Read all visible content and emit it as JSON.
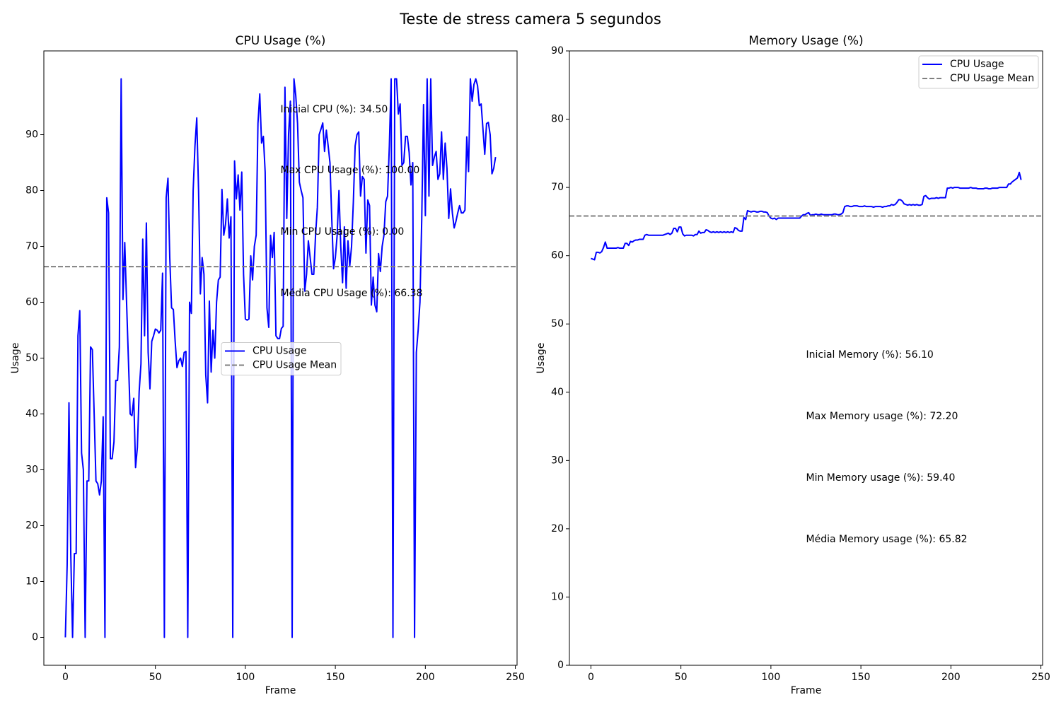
{
  "title": "Teste de stress camera 5 segundos",
  "chart_data": [
    {
      "type": "line",
      "title": "CPU Usage (%)",
      "xlabel": "Frame",
      "ylabel": "Usage",
      "xlim": [
        -11.95,
        250.95
      ],
      "ylim": [
        -5,
        105
      ],
      "xticks": [
        0,
        50,
        100,
        150,
        200,
        250
      ],
      "yticks": [
        0,
        10,
        20,
        30,
        40,
        50,
        60,
        70,
        80,
        90
      ],
      "legend": "center",
      "x": [
        0,
        1,
        2,
        3,
        4,
        5,
        6,
        7,
        8,
        9,
        10,
        11,
        12,
        13,
        14,
        15,
        16,
        17,
        18,
        19,
        20,
        21,
        22,
        23,
        24,
        25,
        26,
        27,
        28,
        29,
        30,
        31,
        32,
        33,
        34,
        35,
        36,
        37,
        38,
        39,
        40,
        41,
        42,
        43,
        44,
        45,
        46,
        47,
        48,
        49,
        50,
        51,
        52,
        53,
        54,
        55,
        56,
        57,
        58,
        59,
        60,
        61,
        62,
        63,
        64,
        65,
        66,
        67,
        68,
        69,
        70,
        71,
        72,
        73,
        74,
        75,
        76,
        77,
        78,
        79,
        80,
        81,
        82,
        83,
        84,
        85,
        86,
        87,
        88,
        89,
        90,
        91,
        92,
        93,
        94,
        95,
        96,
        97,
        98,
        99,
        100,
        101,
        102,
        103,
        104,
        105,
        106,
        107,
        108,
        109,
        110,
        111,
        112,
        113,
        114,
        115,
        116,
        117,
        118,
        119,
        120,
        121,
        122,
        123,
        124,
        125,
        126,
        127,
        128,
        129,
        130,
        131,
        132,
        133,
        134,
        135,
        136,
        137,
        138,
        139,
        140,
        141,
        142,
        143,
        144,
        145,
        146,
        147,
        148,
        149,
        150,
        151,
        152,
        153,
        154,
        155,
        156,
        157,
        158,
        159,
        160,
        161,
        162,
        163,
        164,
        165,
        166,
        167,
        168,
        169,
        170,
        171,
        172,
        173,
        174,
        175,
        176,
        177,
        178,
        179,
        180,
        181,
        182,
        183,
        184,
        185,
        186,
        187,
        188,
        189,
        190,
        191,
        192,
        193,
        194,
        195,
        196,
        197,
        198,
        199,
        200,
        201,
        202,
        203,
        204,
        205,
        206,
        207,
        208,
        209,
        210,
        211,
        212,
        213,
        214,
        215,
        216,
        217,
        218,
        219,
        220,
        221,
        222,
        223,
        224,
        225,
        226,
        227,
        228,
        229,
        230,
        231,
        232,
        233,
        234,
        235,
        236,
        237,
        238,
        239
      ],
      "series": [
        {
          "name": "CPU Usage",
          "color": "#0000ff",
          "values": [
            0,
            13,
            42,
            15,
            0,
            15,
            15,
            54,
            58.5,
            33,
            30,
            0,
            28,
            28,
            52,
            51.5,
            40,
            28,
            27.5,
            25.5,
            28,
            39.5,
            0,
            78.7,
            76,
            32,
            32,
            35,
            46,
            46,
            52,
            100,
            60.5,
            70.7,
            60,
            50,
            40,
            39.7,
            42.8,
            30.4,
            34,
            44,
            49,
            71.3,
            54,
            74.2,
            51,
            44.5,
            53,
            54,
            55.2,
            55,
            54.5,
            55,
            65.2,
            0,
            78.7,
            82.2,
            68,
            59,
            58.7,
            53,
            48.3,
            49.5,
            50,
            48.5,
            51,
            51.2,
            0,
            60,
            58,
            80,
            88,
            93,
            80,
            61.5,
            68,
            65,
            47,
            42,
            60.2,
            47.5,
            55,
            50,
            60,
            64,
            64.5,
            80.2,
            72,
            74,
            78.5,
            71.5,
            75.3,
            0,
            85.3,
            78.5,
            82.8,
            76.5,
            83.3,
            65,
            57,
            56.8,
            57,
            68.3,
            64,
            70,
            72,
            92,
            97.3,
            88.5,
            89.7,
            83.3,
            59,
            55.5,
            72,
            68,
            72.5,
            54,
            53.5,
            53.5,
            55.3,
            55.7,
            98.5,
            75,
            90,
            96,
            0,
            100,
            97,
            92,
            81.5,
            80,
            78.7,
            62,
            65,
            71,
            68,
            65,
            65,
            72,
            77,
            90,
            91,
            92.1,
            87,
            90.8,
            88,
            85,
            75,
            66,
            68,
            72,
            80,
            70,
            63.5,
            73.5,
            62.5,
            71,
            66.5,
            70,
            78,
            88,
            90,
            90.5,
            79,
            82.5,
            82,
            68.8,
            78.3,
            77.3,
            59.5,
            64.5,
            59.5,
            58.3,
            68.7,
            65.5,
            70,
            72,
            78,
            79,
            88,
            100,
            0,
            100,
            100,
            93.7,
            95.5,
            84.5,
            85,
            89.7,
            89.7,
            86.8,
            81,
            85,
            0,
            51,
            55,
            60,
            75,
            95.4,
            75.5,
            100,
            79,
            100,
            84.5,
            86,
            87,
            82,
            83,
            90.5,
            82,
            88.5,
            84,
            75,
            80.3,
            76,
            73.3,
            74.5,
            76,
            77.3,
            76,
            76,
            76.5,
            89.6,
            83.4,
            100,
            96,
            99,
            100,
            98.8,
            95.2,
            95.5,
            91,
            86.5,
            92,
            92.2,
            90,
            83,
            84,
            86
          ]
        },
        {
          "name": "CPU Usage Mean",
          "color": "#808080",
          "dashed": true,
          "value": 66.38
        }
      ],
      "annotations": [
        "Inicial CPU (%): 34.50",
        "Max CPU Usage (%): 100.00",
        "Min CPU Usage (%): 0.00",
        "Média CPU Usage (%): 66.38"
      ]
    },
    {
      "type": "line",
      "title": "Memory Usage (%)",
      "xlabel": "Frame",
      "ylabel": "Usage",
      "xlim": [
        -11.95,
        250.95
      ],
      "ylim": [
        0,
        90
      ],
      "xticks": [
        0,
        50,
        100,
        150,
        200,
        250
      ],
      "yticks": [
        0,
        10,
        20,
        30,
        40,
        50,
        60,
        70,
        80,
        90
      ],
      "legend": "upper right",
      "x": [
        0,
        1,
        2,
        3,
        4,
        5,
        6,
        7,
        8,
        9,
        10,
        11,
        12,
        13,
        14,
        15,
        16,
        17,
        18,
        19,
        20,
        21,
        22,
        23,
        24,
        25,
        26,
        27,
        28,
        29,
        30,
        31,
        32,
        33,
        34,
        35,
        36,
        37,
        38,
        39,
        40,
        41,
        42,
        43,
        44,
        45,
        46,
        47,
        48,
        49,
        50,
        51,
        52,
        53,
        54,
        55,
        56,
        57,
        58,
        59,
        60,
        61,
        62,
        63,
        64,
        65,
        66,
        67,
        68,
        69,
        70,
        71,
        72,
        73,
        74,
        75,
        76,
        77,
        78,
        79,
        80,
        81,
        82,
        83,
        84,
        85,
        86,
        87,
        88,
        89,
        90,
        91,
        92,
        93,
        94,
        95,
        96,
        97,
        98,
        99,
        100,
        101,
        102,
        103,
        104,
        105,
        106,
        107,
        108,
        109,
        110,
        111,
        112,
        113,
        114,
        115,
        116,
        117,
        118,
        119,
        120,
        121,
        122,
        123,
        124,
        125,
        126,
        127,
        128,
        129,
        130,
        131,
        132,
        133,
        134,
        135,
        136,
        137,
        138,
        139,
        140,
        141,
        142,
        143,
        144,
        145,
        146,
        147,
        148,
        149,
        150,
        151,
        152,
        153,
        154,
        155,
        156,
        157,
        158,
        159,
        160,
        161,
        162,
        163,
        164,
        165,
        166,
        167,
        168,
        169,
        170,
        171,
        172,
        173,
        174,
        175,
        176,
        177,
        178,
        179,
        180,
        181,
        182,
        183,
        184,
        185,
        186,
        187,
        188,
        189,
        190,
        191,
        192,
        193,
        194,
        195,
        196,
        197,
        198,
        199,
        200,
        201,
        202,
        203,
        204,
        205,
        206,
        207,
        208,
        209,
        210,
        211,
        212,
        213,
        214,
        215,
        216,
        217,
        218,
        219,
        220,
        221,
        222,
        223,
        224,
        225,
        226,
        227,
        228,
        229,
        230,
        231,
        232,
        233,
        234,
        235,
        236,
        237,
        238,
        239
      ],
      "series": [
        {
          "name": "CPU Usage",
          "color": "#0000ff",
          "values": [
            59.6,
            59.5,
            59.4,
            60.5,
            60.5,
            60.4,
            60.6,
            61.2,
            62,
            61.1,
            61.1,
            61.1,
            61.1,
            61.1,
            61.1,
            61.2,
            61.1,
            61.1,
            61.1,
            61.8,
            61.8,
            61.5,
            62.1,
            62,
            62.2,
            62.3,
            62.3,
            62.4,
            62.4,
            62.4,
            63,
            63.1,
            63,
            63,
            63,
            63,
            63,
            63,
            63,
            63,
            63,
            63.1,
            63.2,
            63.3,
            63.1,
            63.3,
            64,
            64,
            63.5,
            64.2,
            64.2,
            63.2,
            62.9,
            63,
            63,
            63,
            63,
            62.9,
            63.1,
            63.1,
            63.6,
            63.3,
            63.4,
            63.4,
            63.8,
            63.7,
            63.5,
            63.4,
            63.5,
            63.4,
            63.5,
            63.4,
            63.5,
            63.4,
            63.5,
            63.4,
            63.5,
            63.4,
            63.5,
            63.4,
            64.1,
            64,
            63.7,
            63.6,
            63.6,
            65.6,
            65.3,
            66.6,
            66.5,
            66.4,
            66.5,
            66.5,
            66.4,
            66.4,
            66.5,
            66.5,
            66.4,
            66.4,
            66.3,
            65.8,
            65.5,
            65.4,
            65.5,
            65.3,
            65.5,
            65.5,
            65.5,
            65.5,
            65.5,
            65.5,
            65.5,
            65.5,
            65.5,
            65.5,
            65.5,
            65.5,
            65.5,
            65.8,
            66,
            66,
            66.2,
            66.3,
            65.9,
            66,
            66,
            66.1,
            66,
            66,
            66.1,
            66,
            66,
            66,
            66,
            66,
            66,
            66.1,
            66.1,
            66,
            66,
            66.1,
            66.3,
            67.2,
            67.3,
            67.3,
            67.2,
            67.2,
            67.3,
            67.3,
            67.3,
            67.2,
            67.2,
            67.2,
            67.3,
            67.2,
            67.2,
            67.2,
            67.2,
            67.1,
            67.2,
            67.2,
            67.2,
            67.2,
            67.1,
            67.2,
            67.2,
            67.3,
            67.3,
            67.5,
            67.4,
            67.5,
            67.8,
            68.2,
            68.2,
            68,
            67.6,
            67.5,
            67.4,
            67.5,
            67.4,
            67.5,
            67.4,
            67.5,
            67.4,
            67.4,
            67.5,
            68.7,
            68.8,
            68.5,
            68.3,
            68.4,
            68.4,
            68.4,
            68.5,
            68.4,
            68.5,
            68.5,
            68.5,
            68.5,
            69.9,
            69.9,
            70,
            69.9,
            70,
            70,
            70,
            69.9,
            69.9,
            69.9,
            69.9,
            69.9,
            69.9,
            70,
            69.9,
            69.9,
            69.9,
            69.8,
            69.8,
            69.8,
            69.8,
            69.9,
            69.9,
            69.8,
            69.8,
            69.9,
            69.9,
            69.9,
            69.9,
            70,
            70,
            70,
            70,
            70,
            70.5,
            70.5,
            70.8,
            71,
            71.2,
            71.4,
            72.2,
            71.1
          ]
        },
        {
          "name": "CPU Usage Mean",
          "color": "#808080",
          "dashed": true,
          "value": 65.82
        }
      ],
      "annotations": [
        "Inicial Memory (%): 56.10",
        "Max Memory usage (%): 72.20",
        "Min Memory usage (%): 59.40",
        "Média Memory usage (%): 65.82"
      ]
    }
  ]
}
